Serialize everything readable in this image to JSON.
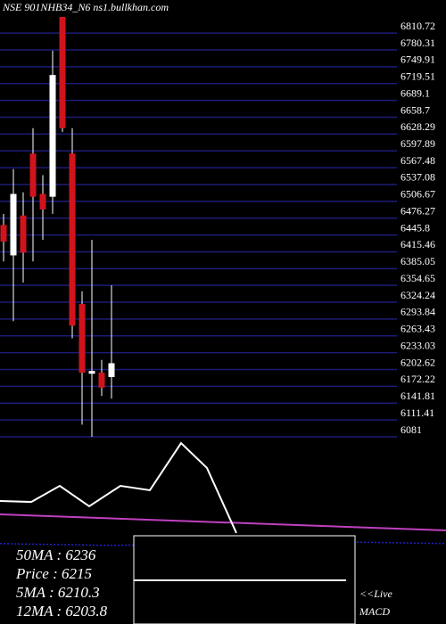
{
  "chart_data": [
    {
      "type": "candlestick",
      "title": "NSE 901NHB34_N6  ns1.bullkhan.com",
      "open": [
        6464,
        6409,
        6481,
        6593,
        6520,
        6515,
        6840,
        6593,
        6321,
        6195,
        6197,
        6189
      ],
      "high": [
        6484,
        6565,
        6523,
        6639,
        6554,
        6779,
        6840,
        6639,
        6344,
        6437,
        6220,
        6355
      ],
      "low": [
        6398,
        6290,
        6360,
        6398,
        6437,
        6484,
        6632,
        6259,
        6103,
        6081,
        6155,
        6150
      ],
      "close": [
        6434,
        6520,
        6414,
        6515,
        6492,
        6735,
        6639,
        6282,
        6197,
        6200,
        6170,
        6214
      ],
      "up_color": "#ffffff",
      "down_color": "#d0141b",
      "grid_color": "#1c1c78",
      "ylim": [
        6081,
        6840
      ],
      "yticks": [
        6810.72,
        6780.31,
        6749.91,
        6719.51,
        6689.1,
        6658.7,
        6628.29,
        6597.89,
        6567.48,
        6537.08,
        6506.67,
        6476.27,
        6445.8,
        6415.46,
        6385.05,
        6354.65,
        6324.24,
        6293.84,
        6263.43,
        6233.03,
        6202.62,
        6172.22,
        6141.81,
        6111.41,
        6081
      ],
      "grid": true
    },
    {
      "type": "line",
      "xlim": [
        0,
        500
      ],
      "ylim": [
        0,
        100
      ],
      "series": [
        {
          "color": "#ffffff",
          "x": [
            0,
            35,
            67,
            100,
            135,
            168,
            203,
            232,
            265
          ],
          "values": [
            67.3,
            66.8,
            75.6,
            64.4,
            75.6,
            73.2,
            99,
            85.4,
            49.8
          ]
        },
        {
          "color": "#c040c0",
          "x": [
            0,
            500
          ],
          "values": [
            60,
            51.2
          ]
        },
        {
          "color": "#2020c8",
          "x": [
            0,
            125,
            250,
            375,
            500
          ],
          "values": [
            44,
            43,
            44,
            45,
            44
          ],
          "dashed": true
        }
      ]
    }
  ],
  "overlay": {
    "lines": [
      "50MA : 6236",
      "Price  : 6215",
      "5MA : 6210.3",
      "12MA : 6203.8"
    ],
    "live": "<<Live",
    "macd": "MACD"
  }
}
